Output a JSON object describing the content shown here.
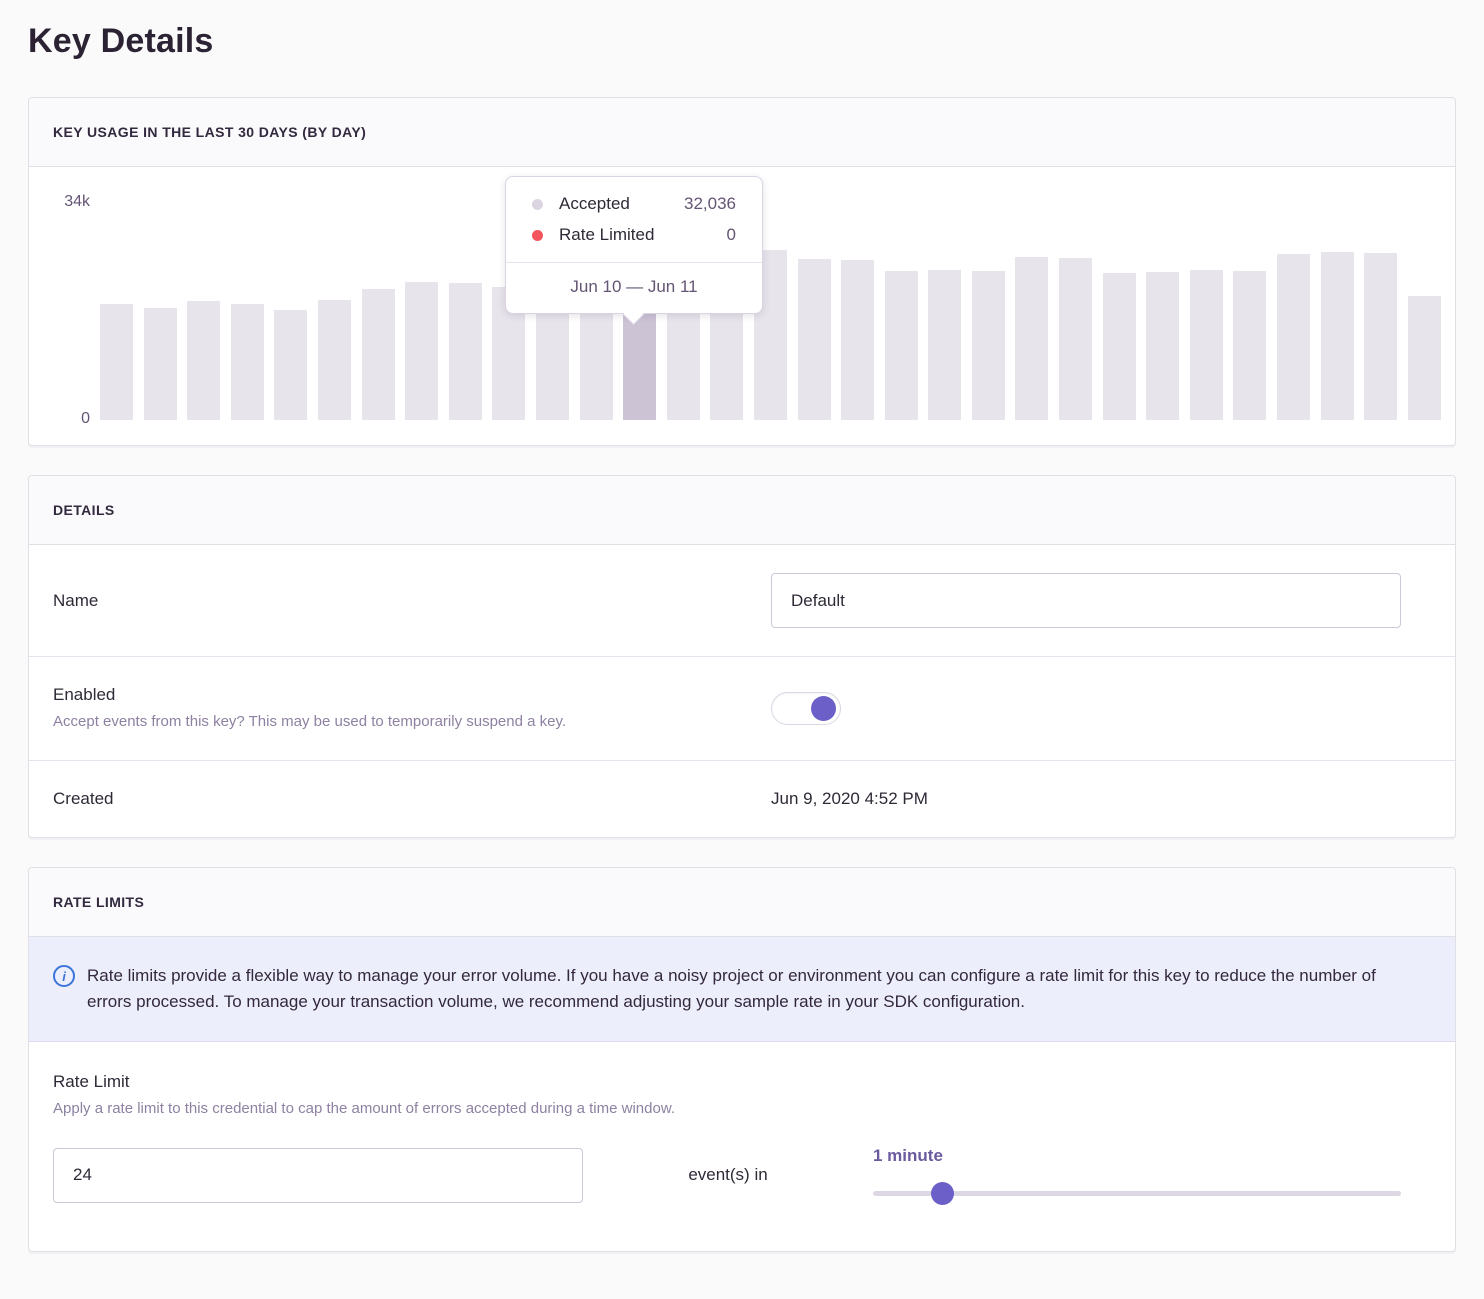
{
  "page": {
    "title": "Key Details"
  },
  "colors": {
    "accent_purple": "#6C5FC7",
    "accepted_dot": "#DBD5E2",
    "rate_limited_dot": "#F4555D",
    "bar": "#E8E4EC",
    "bar_hovered": "#CCC3D5",
    "info_blue": "#3D74DB",
    "panel_border": "#E2DEE6"
  },
  "chart_data": {
    "type": "bar",
    "title": "KEY USAGE IN THE LAST 30 DAYS (BY DAY)",
    "ylabel": "",
    "xlabel": "",
    "ylim": [
      0,
      34000
    ],
    "yticks": [
      0,
      34000
    ],
    "ytick_labels": [
      "0",
      "34k"
    ],
    "grid": false,
    "legend": [
      "Accepted",
      "Rate Limited"
    ],
    "values": [
      18100,
      17500,
      18700,
      18200,
      17300,
      18800,
      20600,
      21600,
      21400,
      20800,
      20800,
      21900,
      32036,
      25600,
      25600,
      26700,
      25200,
      25100,
      23300,
      23500,
      23400,
      25500,
      25400,
      23000,
      23200,
      23500,
      23300,
      26000,
      26300,
      26200,
      19400
    ],
    "hovered": {
      "index": 12,
      "label": "Jun 10 — Jun 11",
      "accepted": 32036,
      "rate_limited": 0
    }
  },
  "usage_panel": {
    "title": "KEY USAGE IN THE LAST 30 DAYS (BY DAY)",
    "y_axis": {
      "max_label": "34k",
      "min_label": "0"
    },
    "tooltip": {
      "rows": [
        {
          "label": "Accepted",
          "value": "32,036",
          "dot_color": "#DBD5E2"
        },
        {
          "label": "Rate Limited",
          "value": "0",
          "dot_color": "#F4555D"
        }
      ],
      "date_range": "Jun 10 — Jun 11"
    }
  },
  "details": {
    "title": "DETAILS",
    "rows": {
      "name": {
        "label": "Name",
        "value": "Default"
      },
      "enabled": {
        "label": "Enabled",
        "help": "Accept events from this key? This may be used to temporarily suspend a key.",
        "value": true
      },
      "created": {
        "label": "Created",
        "value": "Jun 9, 2020 4:52 PM"
      }
    }
  },
  "rate_limits": {
    "title": "RATE LIMITS",
    "alert": "Rate limits provide a flexible way to manage your error volume. If you have a noisy project or environment you can configure a rate limit for this key to reduce the number of errors processed. To manage your transaction volume, we recommend adjusting your sample rate in your SDK configuration.",
    "field": {
      "label": "Rate Limit",
      "help": "Apply a rate limit to this credential to cap the amount of errors accepted during a time window.",
      "count_value": "24",
      "connector": "event(s) in",
      "window_label": "1 minute",
      "slider_percent": 13
    }
  }
}
